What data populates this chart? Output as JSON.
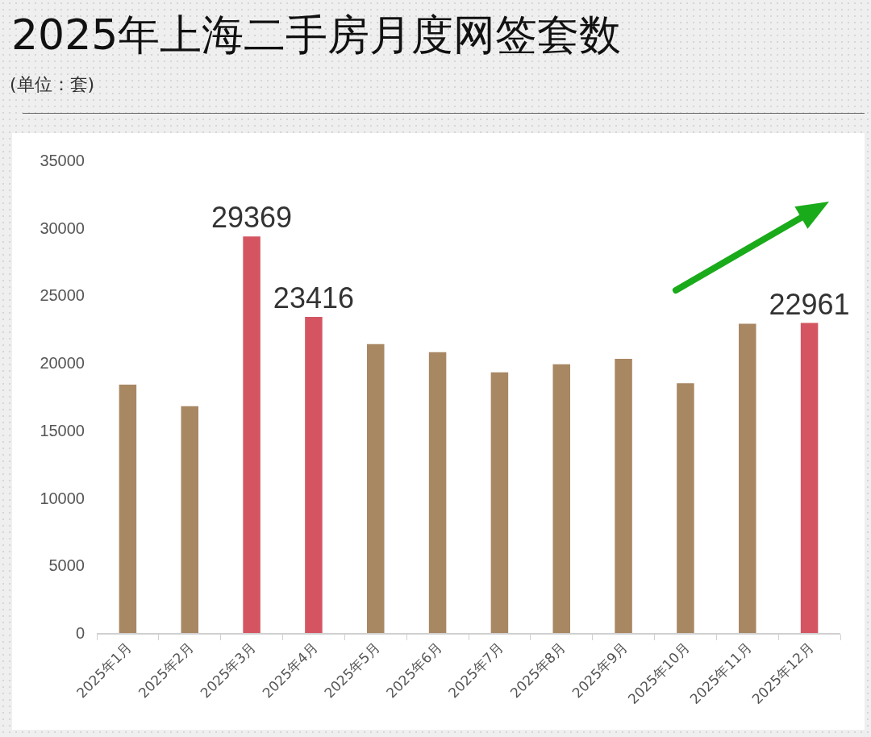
{
  "chart_data": {
    "type": "bar",
    "title": "2025年上海二手房月度网签套数",
    "subtitle": "(单位：套)",
    "categories": [
      "2025年1月",
      "2025年2月",
      "2025年3月",
      "2025年4月",
      "2025年5月",
      "2025年6月",
      "2025年7月",
      "2025年8月",
      "2025年9月",
      "2025年10月",
      "2025年11月",
      "2025年12月"
    ],
    "values": [
      18400,
      16800,
      29369,
      23416,
      21400,
      20800,
      19300,
      19900,
      20300,
      18500,
      22900,
      22961
    ],
    "colors": [
      "#a88763",
      "#a88763",
      "#d45561",
      "#d45561",
      "#a88763",
      "#a88763",
      "#a88763",
      "#a88763",
      "#a88763",
      "#a88763",
      "#a88763",
      "#d45561"
    ],
    "value_labels": [
      null,
      null,
      "29369",
      "23416",
      null,
      null,
      null,
      null,
      null,
      null,
      null,
      "22961"
    ],
    "ylim": [
      0,
      35000
    ],
    "yticks": [
      0,
      5000,
      10000,
      15000,
      20000,
      25000,
      30000,
      35000
    ]
  }
}
